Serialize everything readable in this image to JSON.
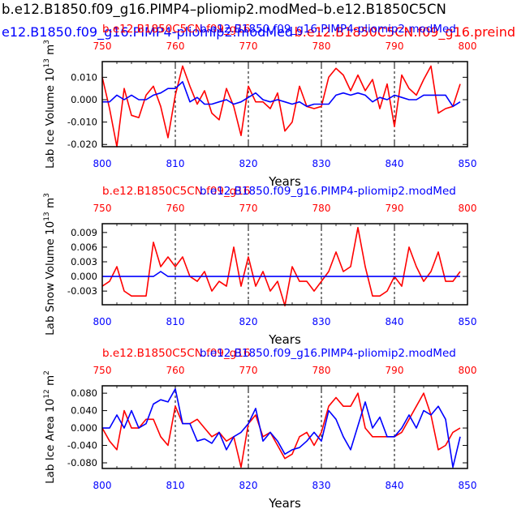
{
  "page_title": "b.e12.B1850.f09_g16.PIMP4–pliomip2.modMed–b.e12.B1850C5CN",
  "top_legend_blue": "e12.B1850.f09_g16.PIMP4-pliomip2.modMed",
  "top_legend_red": "b.e12.B1850C5CN.f09_g16.preind",
  "colors": {
    "red": "#ff0000",
    "blue": "#0000ff",
    "black": "#000000"
  },
  "chart_data": [
    {
      "type": "line",
      "legend_red": "b.e12.B1850C5CN.f09_g16",
      "legend_blue": "b.e12.B1850.f09_g16.PIMP4-pliomip2.modMed",
      "ylabel": "Lab Ice Volume 10",
      "ylabel_exp": "13",
      "ylabel_unit": " m",
      "ylabel_unit_exp": "3",
      "xlabel": "Years",
      "xlim": [
        800,
        850
      ],
      "ylim": [
        -0.021,
        0.017
      ],
      "x_ticks": [
        800,
        810,
        820,
        830,
        840,
        850
      ],
      "top_ticks": [
        750,
        760,
        770,
        780,
        790,
        800
      ],
      "y_ticks": [
        0.01,
        0.0,
        -0.01,
        -0.02
      ],
      "y_tick_labels": [
        "0.010",
        "0.000",
        "-0.010",
        "-0.020"
      ],
      "vlines": [
        810,
        820,
        830,
        840
      ],
      "series": [
        {
          "name": "red",
          "values": [
            0.01,
            -0.004,
            -0.021,
            0.005,
            -0.007,
            -0.008,
            0.002,
            0.006,
            -0.003,
            -0.017,
            0.002,
            0.015,
            0.006,
            -0.002,
            0.004,
            -0.006,
            -0.009,
            0.005,
            -0.003,
            -0.016,
            0.006,
            -0.001,
            -0.001,
            -0.004,
            0.003,
            -0.014,
            -0.01,
            0.006,
            -0.003,
            -0.004,
            -0.003,
            0.01,
            0.014,
            0.011,
            0.004,
            0.011,
            0.004,
            0.009,
            -0.004,
            0.007,
            -0.012,
            0.011,
            0.005,
            0.002,
            0.009,
            0.015,
            -0.006,
            -0.004,
            -0.003,
            0.007
          ]
        },
        {
          "name": "blue",
          "values": [
            -0.001,
            -0.001,
            0.002,
            0.0,
            0.002,
            0.0,
            0.0,
            0.002,
            0.003,
            0.005,
            0.005,
            0.008,
            -0.001,
            0.001,
            -0.002,
            -0.002,
            -0.001,
            0.0,
            -0.002,
            -0.001,
            0.001,
            0.003,
            0.0,
            -0.001,
            0.0,
            -0.001,
            -0.002,
            -0.001,
            -0.003,
            -0.002,
            -0.002,
            -0.002,
            0.002,
            0.003,
            0.002,
            0.003,
            0.002,
            -0.001,
            0.001,
            0.0,
            0.002,
            0.001,
            0.0,
            0.0,
            0.002,
            0.002,
            0.002,
            0.002,
            -0.003,
            -0.001
          ]
        }
      ]
    },
    {
      "type": "line",
      "legend_red": "b.e12.B1850C5CN.f09_g16",
      "legend_blue": "b.e12.B1850.f09_g16.PIMP4-pliomip2.modMed",
      "ylabel": "Lab Snow Volume 10",
      "ylabel_exp": "13",
      "ylabel_unit": " m",
      "ylabel_unit_exp": "3",
      "xlabel": "Years",
      "xlim": [
        800,
        850
      ],
      "ylim": [
        -0.0058,
        0.0108
      ],
      "x_ticks": [
        800,
        810,
        820,
        830,
        840,
        850
      ],
      "top_ticks": [
        750,
        760,
        770,
        780,
        790,
        800
      ],
      "y_ticks": [
        0.009,
        0.006,
        0.003,
        0.0,
        -0.003
      ],
      "y_tick_labels": [
        "0.009",
        "0.006",
        "0.003",
        "0.000",
        "-0.003"
      ],
      "vlines": [
        810,
        820,
        830,
        840
      ],
      "series": [
        {
          "name": "red",
          "values": [
            -0.002,
            -0.001,
            0.002,
            -0.003,
            -0.004,
            -0.004,
            -0.004,
            0.007,
            0.002,
            0.004,
            0.002,
            0.004,
            0.0,
            -0.001,
            0.001,
            -0.003,
            -0.001,
            -0.002,
            0.006,
            -0.002,
            0.004,
            -0.002,
            0.001,
            -0.003,
            -0.001,
            -0.006,
            0.002,
            -0.001,
            -0.001,
            -0.003,
            -0.001,
            0.001,
            0.005,
            0.001,
            0.002,
            0.01,
            0.002,
            -0.004,
            -0.004,
            -0.003,
            0.0,
            -0.002,
            0.006,
            0.002,
            -0.001,
            0.001,
            0.005,
            -0.001,
            -0.001,
            0.001
          ]
        },
        {
          "name": "blue",
          "values": [
            0.0,
            0.0,
            0.0,
            0.0,
            0.0,
            0.0,
            0.0,
            0.0,
            0.001,
            0.0,
            0.0,
            0.0,
            0.0,
            0.0,
            0.0,
            0.0,
            0.0,
            0.0,
            0.0,
            0.0,
            0.0,
            0.0,
            0.0,
            0.0,
            0.0,
            0.0,
            0.0,
            0.0,
            0.0,
            0.0,
            0.0,
            0.0,
            0.0,
            0.0,
            0.0,
            0.0,
            0.0,
            0.0,
            0.0,
            0.0,
            0.0,
            0.0,
            0.0,
            0.0,
            0.0,
            0.0,
            0.0,
            0.0,
            0.0,
            0.0
          ]
        }
      ]
    },
    {
      "type": "line",
      "legend_red": "b.e12.B1850C5CN.f09_g16",
      "legend_blue": "b.e12.B1850.f09_g16.PIMP4-pliomip2.modMed",
      "ylabel": "Lab Ice Area 10",
      "ylabel_exp": "12",
      "ylabel_unit": " m",
      "ylabel_unit_exp": "2",
      "xlabel": "Years",
      "xlim": [
        800,
        850
      ],
      "ylim": [
        -0.093,
        0.097
      ],
      "x_ticks": [
        800,
        810,
        820,
        830,
        840,
        850
      ],
      "top_ticks": [
        750,
        760,
        770,
        780,
        790,
        800
      ],
      "y_ticks": [
        0.08,
        0.04,
        0.0,
        -0.04,
        -0.08
      ],
      "y_tick_labels": [
        "0.080",
        "0.040",
        "0.000",
        "-0.040",
        "-0.080"
      ],
      "vlines": [
        810,
        820,
        830,
        840
      ],
      "series": [
        {
          "name": "red",
          "values": [
            0.0,
            -0.03,
            -0.05,
            0.04,
            0.0,
            0.0,
            0.02,
            0.02,
            -0.02,
            -0.04,
            0.05,
            0.01,
            0.01,
            0.02,
            0.0,
            -0.02,
            -0.01,
            -0.03,
            -0.02,
            -0.09,
            0.01,
            0.03,
            -0.02,
            -0.01,
            -0.04,
            -0.07,
            -0.06,
            -0.02,
            -0.01,
            -0.04,
            -0.01,
            0.05,
            0.07,
            0.05,
            0.05,
            0.08,
            0.0,
            -0.02,
            -0.02,
            -0.02,
            -0.02,
            -0.01,
            0.02,
            0.05,
            0.08,
            0.03,
            -0.05,
            -0.04,
            -0.01,
            0.0
          ]
        },
        {
          "name": "blue",
          "values": [
            0.0,
            0.0,
            0.03,
            0.0,
            0.04,
            0.0,
            0.01,
            0.055,
            0.065,
            0.06,
            0.09,
            0.01,
            0.01,
            -0.03,
            -0.025,
            -0.035,
            -0.01,
            -0.05,
            -0.02,
            -0.01,
            0.01,
            0.045,
            -0.03,
            -0.01,
            -0.03,
            -0.06,
            -0.05,
            -0.045,
            -0.03,
            -0.01,
            -0.03,
            0.04,
            0.02,
            -0.02,
            -0.05,
            0.005,
            0.06,
            0.0,
            0.025,
            -0.02,
            -0.02,
            0.0,
            0.03,
            0.0,
            0.04,
            0.03,
            0.05,
            0.02,
            -0.09,
            -0.02
          ]
        }
      ]
    }
  ]
}
